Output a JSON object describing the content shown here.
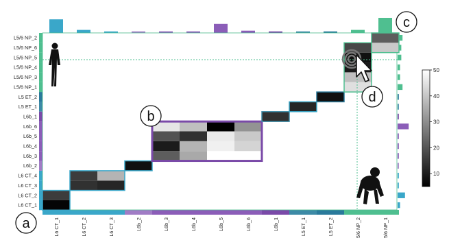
{
  "chart_data": {
    "type": "heatmap",
    "title": "",
    "xlabel": "",
    "ylabel": "",
    "x_labels": [
      "L6 CT_1",
      "L6 CT_2",
      "L6 CT_3",
      "L6b_2",
      "L6b_3",
      "L6b_4",
      "L6b_5",
      "L6b_6",
      "L6b_1",
      "L5 ET_1",
      "L5 ET_2",
      "5/6 NP_2",
      "5/6 NP_1"
    ],
    "y_labels": [
      "L5/6 NP_2",
      "L5/6 NP_6",
      "L5/6 NP_5",
      "L5/6 NP_4",
      "L5/6 NP_3",
      "L5/6 NP_1",
      "L5 ET_2",
      "L5 ET_1",
      "L6b_1",
      "L6b_6",
      "L6b_5",
      "L6b_4",
      "L6b_3",
      "L6b_2",
      "L6 CT_4",
      "L6 CT_3",
      "L6 CT_2",
      "L6 CT_1"
    ],
    "cells": [
      {
        "col": 0,
        "row": 17,
        "value": 6
      },
      {
        "col": 0,
        "row": 16,
        "value": 16
      },
      {
        "col": 1,
        "row": 15,
        "value": 14
      },
      {
        "col": 1,
        "row": 14,
        "value": 16
      },
      {
        "col": 2,
        "row": 15,
        "value": 12
      },
      {
        "col": 2,
        "row": 14,
        "value": 38
      },
      {
        "col": 3,
        "row": 13,
        "value": 8
      },
      {
        "col": 4,
        "row": 12,
        "value": 22
      },
      {
        "col": 4,
        "row": 11,
        "value": 10
      },
      {
        "col": 4,
        "row": 10,
        "value": 20
      },
      {
        "col": 4,
        "row": 9,
        "value": 47
      },
      {
        "col": 5,
        "row": 12,
        "value": 36
      },
      {
        "col": 5,
        "row": 11,
        "value": 38
      },
      {
        "col": 5,
        "row": 10,
        "value": 14
      },
      {
        "col": 5,
        "row": 9,
        "value": 40
      },
      {
        "col": 6,
        "row": 11,
        "value": 49
      },
      {
        "col": 6,
        "row": 10,
        "value": 48
      },
      {
        "col": 6,
        "row": 9,
        "value": 4
      },
      {
        "col": 7,
        "row": 11,
        "value": 44
      },
      {
        "col": 7,
        "row": 10,
        "value": 42
      },
      {
        "col": 7,
        "row": 9,
        "value": 32
      },
      {
        "col": 8,
        "row": 8,
        "value": 14
      },
      {
        "col": 9,
        "row": 7,
        "value": 12
      },
      {
        "col": 10,
        "row": 6,
        "value": 8
      },
      {
        "col": 11,
        "row": 5,
        "value": 46
      },
      {
        "col": 11,
        "row": 4,
        "value": 40
      },
      {
        "col": 11,
        "row": 3,
        "value": 10
      },
      {
        "col": 11,
        "row": 2,
        "value": 8
      },
      {
        "col": 11,
        "row": 1,
        "value": 18
      },
      {
        "col": 12,
        "row": 1,
        "value": 42
      },
      {
        "col": 12,
        "row": 0,
        "value": 22
      }
    ],
    "colorbar": {
      "min": 5,
      "max": 50,
      "ticks": [
        10,
        20,
        30,
        40,
        50
      ],
      "colormap": "white-to-black"
    },
    "col_colors": [
      "#3aa7c9",
      "#3aa7c9",
      "#3aa7c9",
      "#a07cc5",
      "#8b5db8",
      "#8b5db8",
      "#8b5db8",
      "#8b5db8",
      "#7a4aa8",
      "#3d8aa6",
      "#2a7a9b",
      "#4fbf90",
      "#4fbf90"
    ],
    "row_colors": [
      "#4fbf90",
      "#4fbf90",
      "#4fbf90",
      "#4fbf90",
      "#4fbf90",
      "#4fbf90",
      "#2a7a9b",
      "#3d8aa6",
      "#7a4aa8",
      "#8b5db8",
      "#8b5db8",
      "#8b5db8",
      "#8b5db8",
      "#a07cc5",
      "#3aa7c9",
      "#3aa7c9",
      "#3aa7c9",
      "#3aa7c9"
    ],
    "top_bars": [
      0.9,
      0.2,
      0.1,
      0.1,
      0.1,
      0.1,
      0.6,
      0.15,
      0.1,
      0.1,
      0.1,
      0.2,
      1.0
    ],
    "right_bars": [
      0.4,
      0.3,
      0.3,
      0.2,
      0.2,
      0.4,
      0.1,
      0.1,
      0.1,
      0.9,
      0.1,
      0.1,
      0.1,
      0.1,
      0.1,
      0.1,
      0.6,
      0.2
    ],
    "block_outlines": [
      {
        "col0": 0,
        "col1": 0,
        "row0": 16,
        "row1": 17,
        "color": "#3aa7c9"
      },
      {
        "col0": 1,
        "col1": 2,
        "row0": 14,
        "row1": 15,
        "color": "#3aa7c9"
      },
      {
        "col0": 3,
        "col1": 3,
        "row0": 13,
        "row1": 13,
        "color": "#3aa7c9"
      },
      {
        "col0": 4,
        "col1": 7,
        "row0": 9,
        "row1": 12,
        "color": "#7a4aa8",
        "thick": true
      },
      {
        "col0": 8,
        "col1": 8,
        "row0": 8,
        "row1": 8,
        "color": "#3d8aa6"
      },
      {
        "col0": 9,
        "col1": 9,
        "row0": 7,
        "row1": 7,
        "color": "#3aa7c9"
      },
      {
        "col0": 10,
        "col1": 10,
        "row0": 6,
        "row1": 6,
        "color": "#2a7a9b"
      },
      {
        "col0": 11,
        "col1": 11,
        "row0": 1,
        "row1": 5,
        "color": "#4fbf90"
      },
      {
        "col0": 12,
        "col1": 12,
        "row0": 0,
        "row1": 1,
        "color": "#4fbf90"
      }
    ],
    "callouts": [
      "a",
      "b",
      "c",
      "d"
    ]
  }
}
